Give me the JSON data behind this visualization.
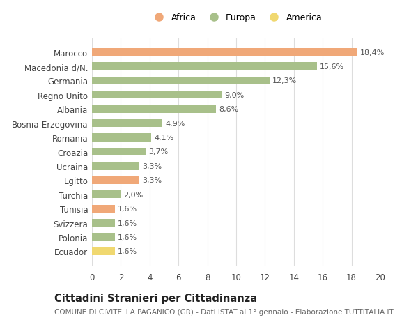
{
  "countries": [
    "Marocco",
    "Macedonia d/N.",
    "Germania",
    "Regno Unito",
    "Albania",
    "Bosnia-Erzegovina",
    "Romania",
    "Croazia",
    "Ucraina",
    "Egitto",
    "Turchia",
    "Tunisia",
    "Svizzera",
    "Polonia",
    "Ecuador"
  ],
  "values": [
    18.4,
    15.6,
    12.3,
    9.0,
    8.6,
    4.9,
    4.1,
    3.7,
    3.3,
    3.3,
    2.0,
    1.6,
    1.6,
    1.6,
    1.6
  ],
  "labels": [
    "18,4%",
    "15,6%",
    "12,3%",
    "9,0%",
    "8,6%",
    "4,9%",
    "4,1%",
    "3,7%",
    "3,3%",
    "3,3%",
    "2,0%",
    "1,6%",
    "1,6%",
    "1,6%",
    "1,6%"
  ],
  "colors": [
    "#F0A878",
    "#A8C08A",
    "#A8C08A",
    "#A8C08A",
    "#A8C08A",
    "#A8C08A",
    "#A8C08A",
    "#A8C08A",
    "#A8C08A",
    "#F0A878",
    "#A8C08A",
    "#F0A878",
    "#A8C08A",
    "#A8C08A",
    "#F0D870"
  ],
  "legend_labels": [
    "Africa",
    "Europa",
    "America"
  ],
  "legend_colors": [
    "#F0A878",
    "#A8C08A",
    "#F0D870"
  ],
  "title": "Cittadini Stranieri per Cittadinanza",
  "subtitle": "COMUNE DI CIVITELLA PAGANICO (GR) - Dati ISTAT al 1° gennaio - Elaborazione TUTTITALIA.IT",
  "xlim": [
    0,
    20
  ],
  "xticks": [
    0,
    2,
    4,
    6,
    8,
    10,
    12,
    14,
    16,
    18,
    20
  ],
  "background_color": "#ffffff",
  "grid_color": "#dddddd",
  "bar_height": 0.55,
  "title_fontsize": 10.5,
  "subtitle_fontsize": 7.5,
  "label_fontsize": 8,
  "tick_fontsize": 8.5,
  "legend_fontsize": 9
}
